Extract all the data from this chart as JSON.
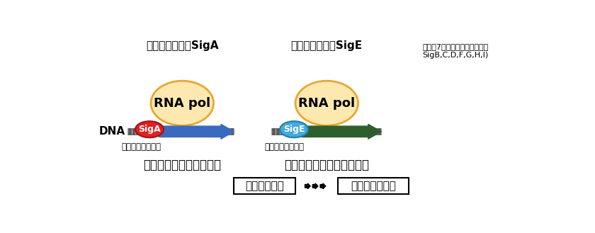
{
  "background_color": "#ffffff",
  "title_left": "主要シグマ因子SigA",
  "title_center": "代替シグマ因子SigE",
  "title_right_line1": "（他に7種類の代替シグマ因子",
  "title_right_line2": "SigB,C,D,F,G,H,I)",
  "dna_label": "DNA",
  "rna_pol_text": "RNA pol",
  "siga_text": "SigA",
  "sige_text": "SigE",
  "promoter_text": "プロモーター領域",
  "housekeeping_text": "ハウスキーピング遺伝子",
  "glycolysis_text": "糖分解に関する遺伝子など",
  "glycogen_text": "グリコーゲン",
  "bioplastic_text": "バイオプラ原料",
  "rnap_circle_color": "#fde9b0",
  "rnap_circle_edge": "#e8a830",
  "siga_ellipse_color": "#dd2222",
  "sige_ellipse_color": "#44aadd",
  "blue_arrow_color": "#3a6abf",
  "green_arrow_color": "#2e5e2e",
  "dna_line_color": "#555555",
  "dna_stripe_color": "#aaaaaa"
}
